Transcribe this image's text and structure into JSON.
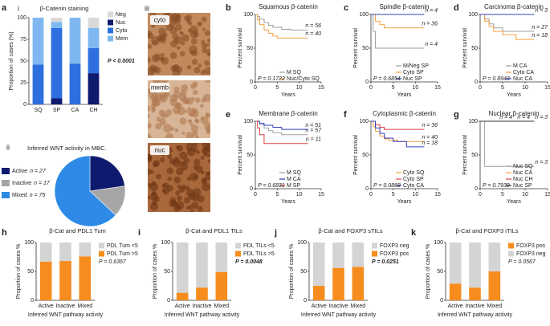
{
  "panel_labels": [
    "a",
    "i",
    "ii",
    "iii",
    "b",
    "c",
    "d",
    "e",
    "f",
    "g",
    "h",
    "i",
    "j",
    "k"
  ],
  "images": {
    "labels": [
      "cyto",
      "memb",
      "nuc"
    ]
  },
  "chart_data": [
    {
      "type": "bar",
      "stacked": true,
      "title": "β-Catenin staining",
      "y_label": "Proportion of cases (%)",
      "categories": [
        "SQ",
        "SP",
        "CA",
        "CH"
      ],
      "ylim": [
        0,
        100
      ],
      "yticks": [
        0,
        25,
        50,
        75,
        100
      ],
      "series": [
        {
          "name": "Nuc",
          "color": "#0d1a6e",
          "values": [
            0,
            7,
            0,
            36
          ]
        },
        {
          "name": "Cyto",
          "color": "#2e6fe0",
          "values": [
            46,
            81,
            47,
            29
          ]
        },
        {
          "name": "Mem",
          "color": "#7fb8f0",
          "values": [
            54,
            7,
            53,
            23
          ]
        },
        {
          "name": "Neg",
          "color": "#d9d9d9",
          "values": [
            0,
            5,
            0,
            12
          ]
        }
      ],
      "p_label": "P < 0.0001",
      "p_bold": true
    },
    {
      "type": "pie",
      "title": "Inferred WNT activity in MBC.",
      "categories": [
        "Active",
        "Inactive",
        "Mixed"
      ],
      "values": [
        27,
        17,
        75
      ],
      "value_labels": [
        "n = 27",
        "n = 17",
        "n = 75"
      ],
      "colors": [
        "#0d1a6e",
        "#a6a6a6",
        "#2e8ae6"
      ]
    },
    {
      "type": "line",
      "step": true,
      "title": "Squamous β-catenin",
      "x_label": "Years",
      "y_label": "Percent survival",
      "xlim": [
        0,
        15
      ],
      "ylim": [
        0,
        100
      ],
      "xticks": [
        0,
        5,
        10,
        15
      ],
      "yticks": [
        0,
        50,
        100
      ],
      "p_label": "P = 0.1722",
      "series": [
        {
          "name": "M SQ",
          "color": "#a0a0a0",
          "x": [
            0,
            0.5,
            1,
            2,
            3,
            4,
            6,
            8,
            12
          ],
          "values": [
            100,
            97,
            93,
            88,
            84,
            81,
            78,
            77,
            77
          ],
          "label": "n = 56"
        },
        {
          "name": "Nuc/Cyto SQ",
          "color": "#f5a040",
          "x": [
            0,
            0.5,
            1,
            2,
            3,
            4,
            5,
            12
          ],
          "values": [
            100,
            92,
            85,
            77,
            72,
            68,
            65,
            65
          ],
          "label": "n = 40"
        }
      ]
    },
    {
      "type": "line",
      "step": true,
      "title": "Spindle β-catenin",
      "x_label": "Years",
      "y_label": "Percent survival",
      "xlim": [
        0,
        15
      ],
      "ylim": [
        0,
        100
      ],
      "xticks": [
        0,
        5,
        10,
        15
      ],
      "yticks": [
        0,
        50,
        100
      ],
      "p_label": "P = 0.6854",
      "series": [
        {
          "name": "M/Neg SP",
          "color": "#a0a0a0",
          "x": [
            0,
            0.5,
            1,
            12
          ],
          "values": [
            100,
            75,
            50,
            50
          ],
          "label": "n = 4"
        },
        {
          "name": "Cyto SP",
          "color": "#f5a040",
          "x": [
            0,
            1,
            2,
            3,
            12
          ],
          "values": [
            100,
            90,
            85,
            80,
            80
          ],
          "label": "n = 36"
        },
        {
          "name": "Nuc SP",
          "color": "#3040c0",
          "x": [
            0,
            12
          ],
          "values": [
            100,
            100
          ],
          "label": "n = 4"
        }
      ]
    },
    {
      "type": "line",
      "step": true,
      "title": "Carcinoma β-catenin",
      "x_label": "Years",
      "y_label": "Percent survival",
      "xlim": [
        0,
        15
      ],
      "ylim": [
        0,
        100
      ],
      "xticks": [
        0,
        5,
        10,
        15
      ],
      "yticks": [
        0,
        50,
        100
      ],
      "p_label": "P = 0.8943",
      "series": [
        {
          "name": "M CA",
          "color": "#a0a0a0",
          "x": [
            0,
            1,
            2,
            3,
            5,
            12
          ],
          "values": [
            100,
            93,
            86,
            80,
            75,
            75
          ],
          "label": "n = 27"
        },
        {
          "name": "Cyto CA",
          "color": "#f5a040",
          "x": [
            0,
            1,
            2,
            3,
            5,
            8,
            12
          ],
          "values": [
            100,
            90,
            82,
            75,
            70,
            63,
            63
          ],
          "label": "n = 18"
        },
        {
          "name": "Nuc CA",
          "color": "#3040c0",
          "x": [
            0,
            12
          ],
          "values": [
            100,
            100
          ],
          "label": "n = 3"
        }
      ]
    },
    {
      "type": "line",
      "step": true,
      "title": "Membrane β-catenin",
      "x_label": "Years",
      "y_label": "Percent survival",
      "xlim": [
        0,
        15
      ],
      "ylim": [
        0,
        100
      ],
      "xticks": [
        0,
        5,
        10,
        15
      ],
      "yticks": [
        0,
        50,
        100
      ],
      "p_label": "P = 0.6831",
      "series": [
        {
          "name": "M SQ",
          "color": "#a0a0a0",
          "x": [
            0,
            1,
            2,
            3,
            4,
            6,
            12
          ],
          "values": [
            100,
            95,
            90,
            86,
            83,
            80,
            80
          ],
          "label": "n = 57"
        },
        {
          "name": "M CA",
          "color": "#3040c0",
          "x": [
            0,
            1,
            2,
            4,
            6,
            12
          ],
          "values": [
            100,
            97,
            94,
            91,
            88,
            88
          ],
          "label": "n = 51"
        },
        {
          "name": "M SP",
          "color": "#e04040",
          "x": [
            0,
            0.5,
            1,
            2,
            12
          ],
          "values": [
            100,
            90,
            80,
            67,
            67
          ],
          "label": "n = 11"
        }
      ]
    },
    {
      "type": "line",
      "step": true,
      "title": "Cytoplasmic β-catenin",
      "x_label": "Years",
      "y_label": "Percent survival",
      "xlim": [
        0,
        15
      ],
      "ylim": [
        0,
        100
      ],
      "xticks": [
        0,
        5,
        10,
        15
      ],
      "yticks": [
        0,
        50,
        100
      ],
      "p_label": "P = 0.0868",
      "series": [
        {
          "name": "Cyto SQ",
          "color": "#f5a040",
          "x": [
            0,
            0.5,
            1,
            2,
            3,
            4,
            6,
            12
          ],
          "values": [
            100,
            92,
            85,
            78,
            74,
            72,
            70,
            70
          ],
          "label": "n = 40"
        },
        {
          "name": "Cyto SP",
          "color": "#e04040",
          "x": [
            0,
            1,
            2,
            3,
            12
          ],
          "values": [
            100,
            95,
            91,
            88,
            88
          ],
          "label": "n = 36"
        },
        {
          "name": "Cyto CA",
          "color": "#3040c0",
          "x": [
            0,
            1,
            2,
            3,
            5,
            8,
            12
          ],
          "values": [
            100,
            90,
            82,
            75,
            70,
            62,
            62
          ],
          "label": "n = 18"
        }
      ]
    },
    {
      "type": "line",
      "step": true,
      "title": "Nuclear β-catenin",
      "x_label": "Years",
      "y_label": "Percent survival",
      "xlim": [
        0,
        15
      ],
      "ylim": [
        0,
        100
      ],
      "xticks": [
        0,
        5,
        10,
        15
      ],
      "yticks": [
        0,
        50,
        100
      ],
      "p_label": "P = 0.7939",
      "series": [
        {
          "name": "Nuc SQ",
          "color": "#a0a0a0",
          "x": [
            0,
            1,
            12
          ],
          "values": [
            100,
            33,
            33
          ],
          "label": "n = 3"
        },
        {
          "name": "Nuc CA",
          "color": "#f5a040",
          "x": [
            0,
            12
          ],
          "values": [
            100,
            100
          ],
          "label": "n = 3"
        },
        {
          "name": "Nuc CH",
          "color": "#e04040",
          "x": [
            0,
            12
          ],
          "values": [
            100,
            100
          ],
          "label": "n = 4"
        },
        {
          "name": "Nuc SP",
          "color": "#333333",
          "x": [
            0,
            12
          ],
          "values": [
            100,
            100
          ],
          "label": "n = 4"
        }
      ]
    },
    {
      "type": "bar",
      "stacked": true,
      "title": "β-Cat and PDL1 Tum",
      "x_label": "Inferred WNT pathway activity",
      "y_label": "Proportion of cases %",
      "categories": [
        "Active",
        "Inactive",
        "Mixed"
      ],
      "ylim": [
        0,
        100
      ],
      "yticks": [
        0,
        50,
        100
      ],
      "series": [
        {
          "name": "PDL Tum >5",
          "color": "#f78c1e",
          "values": [
            67,
            68,
            76
          ]
        },
        {
          "name": "PDL Tum <5",
          "color": "#d4d4d4",
          "values": [
            33,
            32,
            24
          ]
        }
      ],
      "p_label": "P = 0.6367",
      "p_bold": false
    },
    {
      "type": "bar",
      "stacked": true,
      "title": "β-Cat and PDL1 TILs",
      "x_label": "Inferred WNT pathway activity",
      "y_label": "Proportion of cases %",
      "categories": [
        "Active",
        "Inactive",
        "Mixed"
      ],
      "ylim": [
        0,
        100
      ],
      "yticks": [
        0,
        50,
        100
      ],
      "series": [
        {
          "name": "PDL TILs >5",
          "color": "#f78c1e",
          "values": [
            13,
            22,
            49
          ]
        },
        {
          "name": "PDL TILs <5",
          "color": "#d4d4d4",
          "values": [
            87,
            78,
            51
          ]
        }
      ],
      "p_label": "P = 0.0048",
      "p_bold": true
    },
    {
      "type": "bar",
      "stacked": true,
      "title": "β-Cat and FOXP3 sTILs",
      "x_label": "Inferred WNT pathway activity",
      "y_label": "Proportion of cases %",
      "categories": [
        "Active",
        "Inactive",
        "Mixed"
      ],
      "ylim": [
        0,
        100
      ],
      "yticks": [
        0,
        50,
        100
      ],
      "series": [
        {
          "name": "FOXP3 pos",
          "color": "#f78c1e",
          "values": [
            25,
            56,
            58
          ]
        },
        {
          "name": "FOXP3 neg",
          "color": "#d4d4d4",
          "values": [
            75,
            44,
            42
          ]
        }
      ],
      "p_label": "P = 0.0251",
      "p_bold": true
    },
    {
      "type": "bar",
      "stacked": true,
      "title": "β-Cat and FOXP3 iTILs",
      "x_label": "Inferred WNT pathway activity",
      "y_label": "Proportion of cases %",
      "categories": [
        "Active",
        "Inactive",
        "Mixed"
      ],
      "ylim": [
        0,
        100
      ],
      "yticks": [
        0,
        50,
        100
      ],
      "series": [
        {
          "name": "FOXP3 pos",
          "color": "#f78c1e",
          "values": [
            29,
            22,
            50
          ]
        },
        {
          "name": "FOXP3 neg",
          "color": "#d4d4d4",
          "values": [
            71,
            78,
            50
          ]
        }
      ],
      "p_label": "P = 0.0567",
      "p_bold": false
    }
  ]
}
